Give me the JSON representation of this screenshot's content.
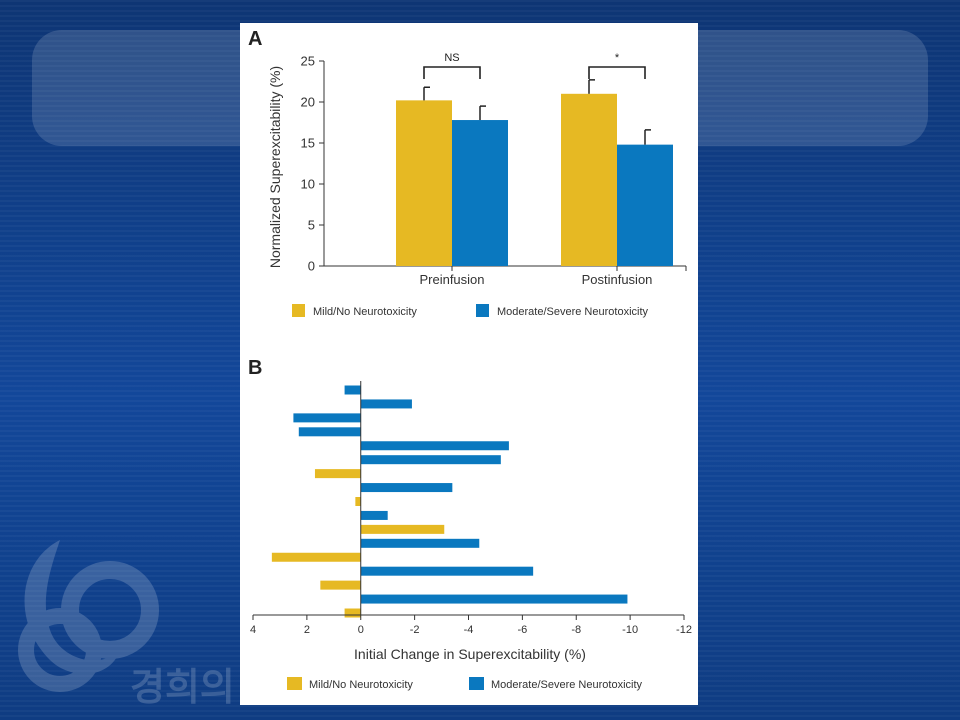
{
  "chart_data": [
    {
      "type": "bar",
      "panel_label": "A",
      "categories": [
        "Preinfusion",
        "Postinfusion"
      ],
      "series": [
        {
          "name": "Mild/No Neurotoxicity",
          "values": [
            20.2,
            21.0
          ],
          "errors": [
            1.6,
            1.7
          ],
          "color": "#e6b923"
        },
        {
          "name": "Moderate/Severe Neurotoxicity",
          "values": [
            17.8,
            14.8
          ],
          "errors": [
            1.7,
            1.8
          ],
          "color": "#0a78bf"
        }
      ],
      "ylabel": "Normalized Superexcitability (%)",
      "xlabel": "",
      "ylim": [
        0,
        25
      ],
      "yticks": [
        0,
        5,
        10,
        15,
        20,
        25
      ],
      "significance": [
        {
          "category": "Preinfusion",
          "label": "NS"
        },
        {
          "category": "Postinfusion",
          "label": "*"
        }
      ],
      "legend_position": "bottom"
    },
    {
      "type": "bar",
      "orientation": "horizontal",
      "panel_label": "B",
      "xlabel": "Initial Change in Superexcitability (%)",
      "xlim": [
        4,
        -12
      ],
      "xticks": [
        4,
        2,
        0,
        -2,
        -4,
        -6,
        -8,
        -10,
        -12
      ],
      "bars": [
        {
          "value": 0.6,
          "group": "Moderate/Severe Neurotoxicity"
        },
        {
          "value": -1.9,
          "group": "Moderate/Severe Neurotoxicity"
        },
        {
          "value": 2.5,
          "group": "Moderate/Severe Neurotoxicity"
        },
        {
          "value": 2.3,
          "group": "Moderate/Severe Neurotoxicity"
        },
        {
          "value": -5.5,
          "group": "Moderate/Severe Neurotoxicity"
        },
        {
          "value": -5.2,
          "group": "Moderate/Severe Neurotoxicity"
        },
        {
          "value": 1.7,
          "group": "Mild/No Neurotoxicity"
        },
        {
          "value": -3.4,
          "group": "Moderate/Severe Neurotoxicity"
        },
        {
          "value": 0.2,
          "group": "Mild/No Neurotoxicity"
        },
        {
          "value": -1.0,
          "group": "Moderate/Severe Neurotoxicity"
        },
        {
          "value": -3.1,
          "group": "Mild/No Neurotoxicity"
        },
        {
          "value": -4.4,
          "group": "Moderate/Severe Neurotoxicity"
        },
        {
          "value": 3.3,
          "group": "Mild/No Neurotoxicity"
        },
        {
          "value": -6.4,
          "group": "Moderate/Severe Neurotoxicity"
        },
        {
          "value": 1.5,
          "group": "Mild/No Neurotoxicity"
        },
        {
          "value": -9.9,
          "group": "Moderate/Severe Neurotoxicity"
        },
        {
          "value": 0.6,
          "group": "Mild/No Neurotoxicity"
        }
      ],
      "legend": [
        {
          "name": "Mild/No Neurotoxicity",
          "color": "#e6b923"
        },
        {
          "name": "Moderate/Severe Neurotoxicity",
          "color": "#0a78bf"
        }
      ],
      "legend_position": "bottom"
    }
  ],
  "background": {
    "watermark_text": "경희의"
  }
}
